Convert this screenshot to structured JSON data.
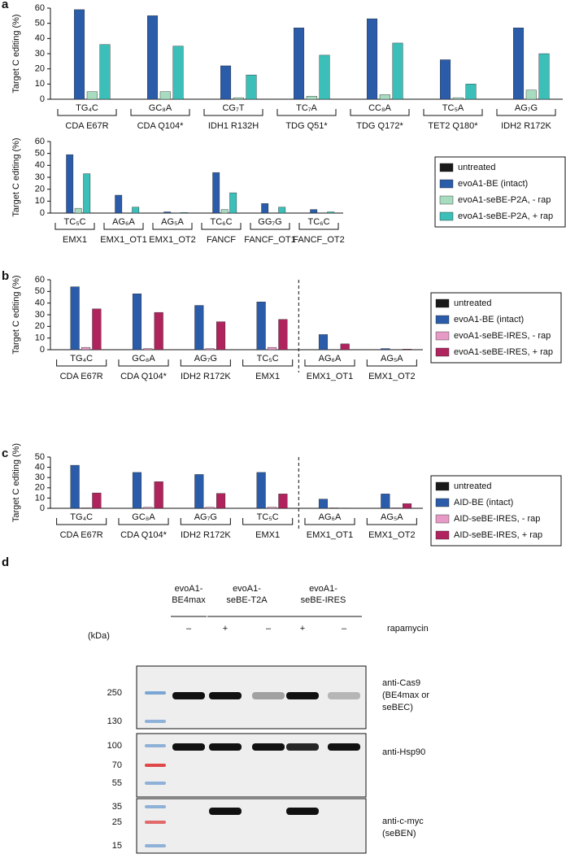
{
  "chart_data": [
    {
      "type": "bar",
      "panel": "a",
      "y_label": "Target C editing (%)",
      "categories": [
        "CDA E67R",
        "CDA Q104*",
        "IDH1 R132H",
        "TDG Q51*",
        "TDG Q172*",
        "TET2 Q180*",
        "IDH2 R172K"
      ],
      "motifs": [
        "TG₄C",
        "GC₈A",
        "CG₇T",
        "TC₇A",
        "CC₈A",
        "TC₅A",
        "AG₇G"
      ],
      "series": [
        {
          "name": "untreated",
          "color": "#1a1a1a",
          "values": [
            0,
            0,
            0,
            0,
            0,
            0,
            0
          ]
        },
        {
          "name": "evoA1-BE (intact)",
          "color": "#2a5caa",
          "values": [
            59,
            55,
            22,
            47,
            53,
            26,
            47
          ]
        },
        {
          "name": "evoA1-seBE-P2A, - rap",
          "color": "#a8dcc0",
          "values": [
            5,
            5,
            1,
            2,
            3,
            1,
            6
          ]
        },
        {
          "name": "evoA1-seBE-P2A, + rap",
          "color": "#3bbfb8",
          "values": [
            36,
            35,
            16,
            29,
            37,
            10,
            30
          ]
        }
      ],
      "ylim": [
        0,
        60
      ],
      "yticks": [
        0,
        10,
        20,
        30,
        40,
        50,
        60
      ]
    },
    {
      "type": "bar",
      "y_label": "Target C editing (%)",
      "categories": [
        "EMX1",
        "EMX1_OT1",
        "EMX1_OT2",
        "FANCF",
        "FANCF_OT1",
        "FANCF_OT2"
      ],
      "motifs": [
        "TC₅C",
        "AG₆A",
        "AG₅A",
        "TC₆C",
        "GG₇G",
        "TC₆C"
      ],
      "series": [
        {
          "name": "untreated",
          "color": "#1a1a1a",
          "values": [
            0,
            0,
            0,
            0,
            0,
            0
          ]
        },
        {
          "name": "evoA1-BE (intact)",
          "color": "#2a5caa",
          "values": [
            49,
            15,
            1,
            34,
            8,
            3
          ]
        },
        {
          "name": "evoA1-seBE-P2A, - rap",
          "color": "#a8dcc0",
          "values": [
            4,
            0,
            0,
            3,
            0,
            0
          ]
        },
        {
          "name": "evoA1-seBE-P2A, + rap",
          "color": "#3bbfb8",
          "values": [
            33,
            5,
            0.5,
            17,
            5,
            1
          ]
        }
      ],
      "ylim": [
        0,
        60
      ],
      "yticks": [
        0,
        10,
        20,
        30,
        40,
        50,
        60
      ],
      "legend": "right"
    },
    {
      "type": "bar",
      "panel": "b",
      "y_label": "Target C editing (%)",
      "categories": [
        "CDA E67R",
        "CDA Q104*",
        "IDH2 R172K",
        "EMX1",
        "EMX1_OT1",
        "EMX1_OT2"
      ],
      "motifs": [
        "TG₄C",
        "GC₈A",
        "AG₇G",
        "TC₅C",
        "AG₆A",
        "AG₅A"
      ],
      "series": [
        {
          "name": "untreated",
          "color": "#1a1a1a",
          "values": [
            0,
            0,
            0,
            0,
            0,
            0
          ]
        },
        {
          "name": "evoA1-BE (intact)",
          "color": "#2a5caa",
          "values": [
            54,
            48,
            38,
            41,
            13,
            1
          ]
        },
        {
          "name": "evoA1-seBE-IRES, - rap",
          "color": "#e79ac6",
          "values": [
            2,
            1,
            1,
            2,
            0,
            0
          ]
        },
        {
          "name": "evoA1-seBE-IRES, + rap",
          "color": "#b0245e",
          "values": [
            35,
            32,
            24,
            26,
            5,
            0.5
          ]
        }
      ],
      "ylim": [
        0,
        60
      ],
      "yticks": [
        0,
        10,
        20,
        30,
        40,
        50,
        60
      ],
      "legend": "right"
    },
    {
      "type": "bar",
      "panel": "c",
      "y_label": "Target C editing (%)",
      "categories": [
        "CDA E67R",
        "CDA Q104*",
        "IDH2 R172K",
        "EMX1",
        "EMX1_OT1",
        "EMX1_OT2"
      ],
      "motifs": [
        "TG₄C",
        "GC₈A",
        "AG₇G",
        "TC₅C",
        "AG₆A",
        "AG₅A"
      ],
      "series": [
        {
          "name": "untreated",
          "color": "#1a1a1a",
          "values": [
            0,
            0,
            0,
            0,
            0,
            0
          ]
        },
        {
          "name": "AID-BE (intact)",
          "color": "#2a5caa",
          "values": [
            42,
            35,
            33,
            35,
            9,
            14
          ]
        },
        {
          "name": "AID-seBE-IRES, - rap",
          "color": "#e79ac6",
          "values": [
            0.5,
            1,
            1,
            1,
            0.5,
            0.5
          ]
        },
        {
          "name": "AID-seBE-IRES, + rap",
          "color": "#b0245e",
          "values": [
            15,
            26,
            14.5,
            14,
            0.3,
            4.5
          ]
        }
      ],
      "ylim": [
        0,
        50
      ],
      "yticks": [
        0,
        10,
        20,
        30,
        40,
        50
      ],
      "legend": "right"
    }
  ],
  "blot": {
    "panel": "d",
    "unit": "(kDa)",
    "groups": [
      [
        "evoA1-",
        "BE4max"
      ],
      [
        "evoA1-",
        "seBE-T2A"
      ],
      [
        "evoA1-",
        "seBE-IRES"
      ]
    ],
    "treatment_label": "rapamycin",
    "treatments": [
      "–",
      "+",
      "–",
      "+",
      "–"
    ],
    "panels": [
      {
        "markers": [
          "250",
          "130"
        ],
        "antibody": [
          "anti-Cas9",
          "(BE4max or",
          "seBEC)"
        ]
      },
      {
        "markers": [
          "100",
          "70",
          "55"
        ],
        "antibody": [
          "anti-Hsp90"
        ]
      },
      {
        "markers": [
          "35",
          "25",
          "15"
        ],
        "antibody": [
          "anti-c-myc",
          "(seBEN)"
        ]
      }
    ]
  }
}
